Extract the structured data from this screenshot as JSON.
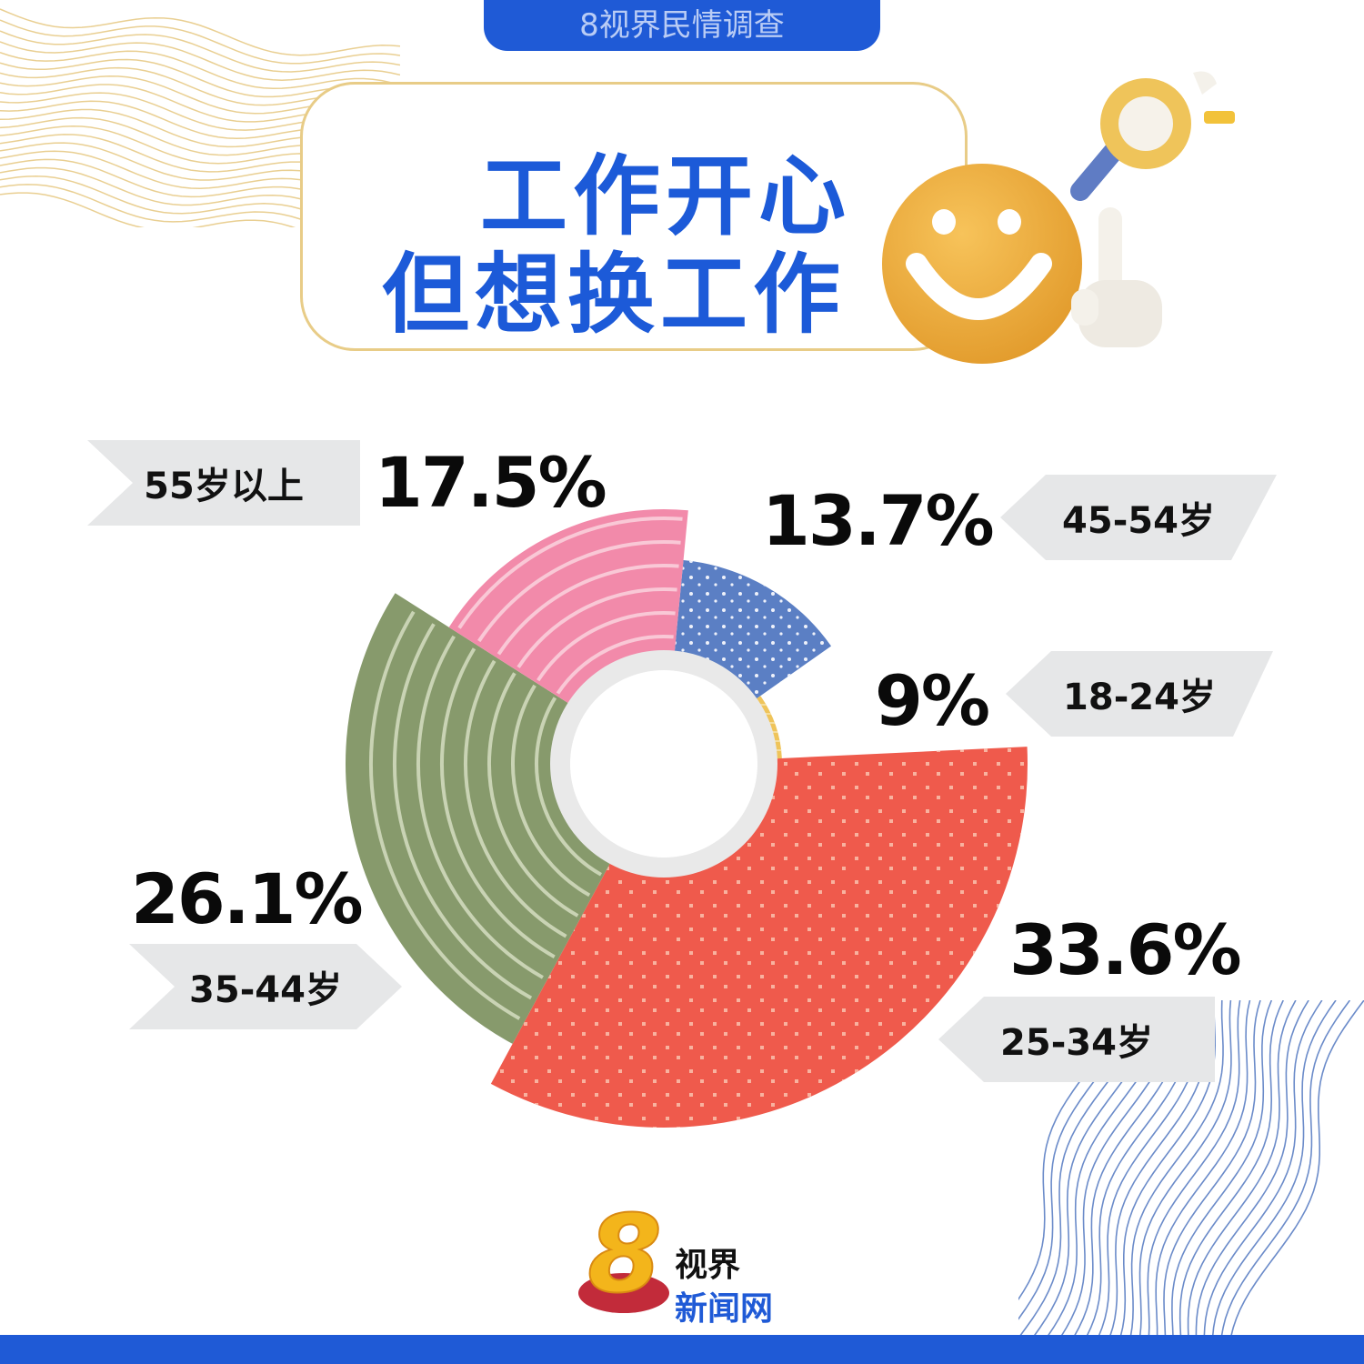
{
  "header": {
    "tab_label": "8视界民情调查"
  },
  "title": {
    "line1": "工作开心",
    "line2": "但想换工作"
  },
  "chart_data": {
    "type": "pie",
    "title": "工作开心 但想换工作",
    "slices": [
      {
        "label": "45-54岁",
        "value": 13.7,
        "value_text": "13.7%",
        "color": "#5b7fc4"
      },
      {
        "label": "18-24岁",
        "value": 9,
        "value_text": "9%",
        "color": "#efc45a"
      },
      {
        "label": "25-34岁",
        "value": 33.6,
        "value_text": "33.6%",
        "color": "#ef5a4c"
      },
      {
        "label": "35-44岁",
        "value": 26.1,
        "value_text": "26.1%",
        "color": "#879a6c"
      },
      {
        "label": "55岁以上",
        "value": 17.5,
        "value_text": "17.5%",
        "color": "#f28aaa"
      }
    ]
  },
  "logo": {
    "mark": "8",
    "line1": "视界",
    "line2": "新闻网"
  },
  "colors": {
    "brand_blue": "#1f5ad6",
    "gold": "#e8cc87"
  }
}
